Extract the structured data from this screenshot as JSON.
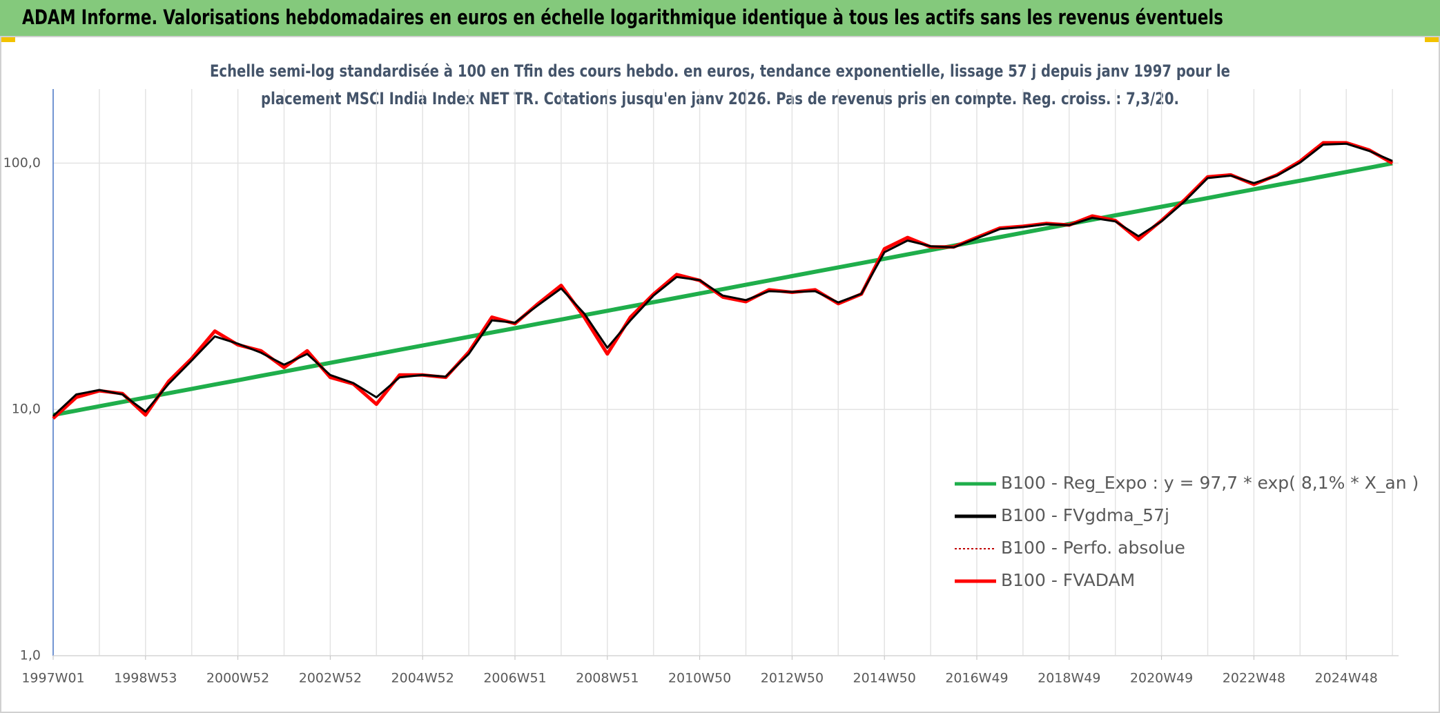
{
  "header": {
    "title": "ADAM Informe. Valorisations hebdomadaires en euros en échelle logarithmique identique à tous les actifs sans les revenus éventuels"
  },
  "chart_data": {
    "type": "line",
    "subtitle": [
      "Echelle semi-log standardisée à 100 en Tfin des cours hebdo. en euros, tendance exponentielle, lissage 57 j depuis janv 1997 pour le",
      "placement MSCI India Index NET TR. Cotations jusqu'en janv 2026. Pas de revenus pris en compte. Reg. croiss. : 7,3/20."
    ],
    "log_scale": true,
    "grid": true,
    "legend": "bottom-right",
    "categories": [
      "1997W01",
      null,
      null,
      null,
      "1998W53",
      null,
      null,
      null,
      "2000W52",
      null,
      null,
      null,
      "2002W52",
      null,
      null,
      null,
      "2004W52",
      null,
      null,
      null,
      "2006W51",
      null,
      null,
      null,
      "2008W51",
      null,
      null,
      null,
      "2010W50",
      null,
      null,
      null,
      "2012W50",
      null,
      null,
      null,
      "2014W50",
      null,
      null,
      null,
      "2016W49",
      null,
      null,
      null,
      "2018W49",
      null,
      null,
      null,
      "2020W49",
      null,
      null,
      null,
      "2022W48",
      null,
      null,
      null,
      "2024W48",
      null,
      null
    ],
    "ylim": [
      1,
      200
    ],
    "yticks": [
      {
        "value": 1,
        "label": "1,0"
      },
      {
        "value": 10,
        "label": "10,0"
      },
      {
        "value": 100,
        "label": "100,0"
      }
    ],
    "series": [
      {
        "name": "B100 - Reg_Expo : y = 97,7 * exp( 8,1% *  X_an )",
        "color": "#1fae4b",
        "style": "solid",
        "width": 6,
        "values": [
          9.5,
          9.89,
          10.3,
          10.73,
          11.17,
          11.64,
          12.12,
          12.62,
          13.14,
          13.69,
          14.25,
          14.84,
          15.46,
          16.1,
          16.76,
          17.46,
          18.18,
          18.93,
          19.72,
          20.53,
          21.38,
          22.27,
          23.19,
          24.15,
          25.15,
          26.19,
          27.27,
          28.4,
          29.58,
          30.8,
          32.08,
          33.4,
          34.79,
          36.23,
          37.73,
          39.29,
          40.91,
          42.61,
          44.37,
          46.21,
          48.12,
          50.11,
          52.19,
          54.35,
          56.6,
          58.94,
          61.38,
          63.92,
          66.57,
          69.33,
          72.2,
          75.18,
          78.3,
          81.54,
          84.91,
          88.43,
          92.09,
          95.9,
          99.87
        ]
      },
      {
        "name": "B100 - FVgdma_57j",
        "color": "#000000",
        "style": "solid",
        "width": 3,
        "values": [
          9.4,
          11.5,
          12.0,
          11.5,
          9.8,
          12.7,
          15.8,
          19.8,
          18.5,
          17.0,
          15.2,
          16.8,
          13.8,
          12.8,
          11.2,
          13.5,
          13.8,
          13.6,
          16.8,
          23.0,
          22.5,
          26.5,
          31.0,
          24.5,
          17.8,
          23.0,
          29.0,
          34.5,
          33.5,
          29.0,
          27.8,
          30.2,
          30.0,
          30.2,
          27.2,
          29.5,
          43.5,
          48.5,
          46.0,
          45.5,
          49.5,
          54.0,
          55.0,
          56.5,
          56.0,
          60.0,
          58.0,
          50.5,
          58.0,
          70.0,
          87.0,
          89.0,
          83.0,
          89.0,
          100.5,
          119.0,
          120.0,
          112.0,
          102.0
        ]
      },
      {
        "name": "B100 - Perfo. absolue",
        "color": "#c00000",
        "style": "dotted",
        "width": 2,
        "values": [
          9.2,
          11.2,
          11.9,
          11.6,
          9.5,
          13,
          16.1,
          20.8,
          18.3,
          17.3,
          14.8,
          17.3,
          13.5,
          12.7,
          10.5,
          13.8,
          13.8,
          13.5,
          17.1,
          23.7,
          22.3,
          26.9,
          31.9,
          23.7,
          16.8,
          23.7,
          29.4,
          35.3,
          33.4,
          28.6,
          27.4,
          30.6,
          29.9,
          30.6,
          26.9,
          29.4,
          44.9,
          49.9,
          45.7,
          45.7,
          49.9,
          54.5,
          55.4,
          56.9,
          56.1,
          61.0,
          58.5,
          49.0,
          58.5,
          71,
          88,
          89.6,
          82,
          89.6,
          101.8,
          121,
          121,
          113,
          100
        ]
      },
      {
        "name": "B100 - FVADAM",
        "color": "#ff0000",
        "style": "solid",
        "width": 5,
        "values": [
          9.2,
          11.2,
          11.9,
          11.6,
          9.5,
          13,
          16.1,
          20.8,
          18.3,
          17.3,
          14.8,
          17.3,
          13.5,
          12.7,
          10.5,
          13.8,
          13.8,
          13.5,
          17.1,
          23.7,
          22.3,
          26.9,
          31.9,
          23.7,
          16.8,
          23.7,
          29.4,
          35.3,
          33.4,
          28.6,
          27.4,
          30.6,
          29.9,
          30.6,
          26.9,
          29.4,
          44.9,
          49.9,
          45.7,
          45.7,
          49.9,
          54.5,
          55.4,
          56.9,
          56.1,
          61.0,
          58.5,
          49.0,
          58.5,
          71,
          88,
          89.6,
          82,
          89.6,
          101.8,
          121,
          121,
          113,
          100
        ]
      }
    ]
  }
}
